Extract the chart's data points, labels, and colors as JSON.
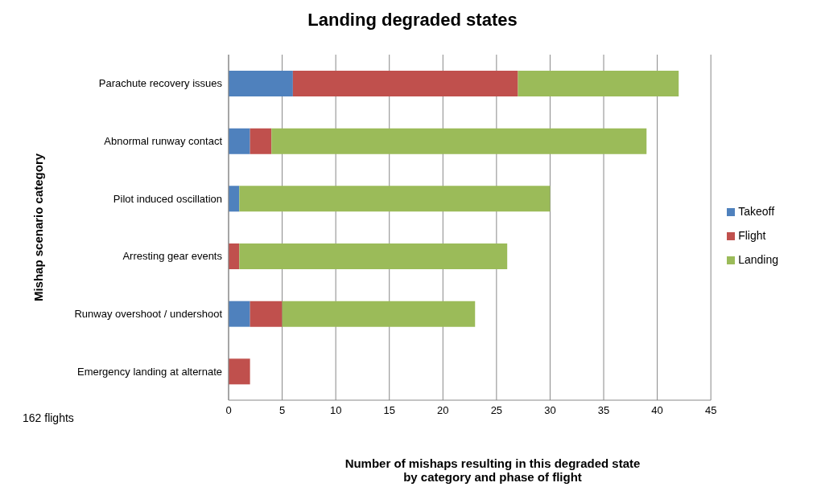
{
  "chart_data": {
    "type": "bar",
    "orientation": "horizontal",
    "stacked": true,
    "title": "Landing degraded states",
    "xlabel": "Number of mishaps resulting in this degraded state\nby category and phase of flight",
    "ylabel": "Mishap scenario category",
    "categories": [
      "Parachute recovery issues",
      "Abnormal runway contact",
      "Pilot induced oscillation",
      "Arresting gear events",
      "Runway overshoot / undershoot",
      "Emergency landing at alternate"
    ],
    "series": [
      {
        "name": "Takeoff",
        "color": "#4f81bd",
        "values": [
          6,
          2,
          1,
          0,
          2,
          0
        ]
      },
      {
        "name": "Flight",
        "color": "#c0504d",
        "values": [
          21,
          2,
          0,
          1,
          3,
          2
        ]
      },
      {
        "name": "Landing",
        "color": "#9bbb59",
        "values": [
          15,
          35,
          29,
          25,
          18,
          0
        ]
      }
    ],
    "xlim": [
      0,
      45
    ],
    "xticks": [
      0,
      5,
      10,
      15,
      20,
      25,
      30,
      35,
      40,
      45
    ],
    "grid": "x",
    "legend": "right",
    "annotations": [
      "162 flights"
    ]
  }
}
